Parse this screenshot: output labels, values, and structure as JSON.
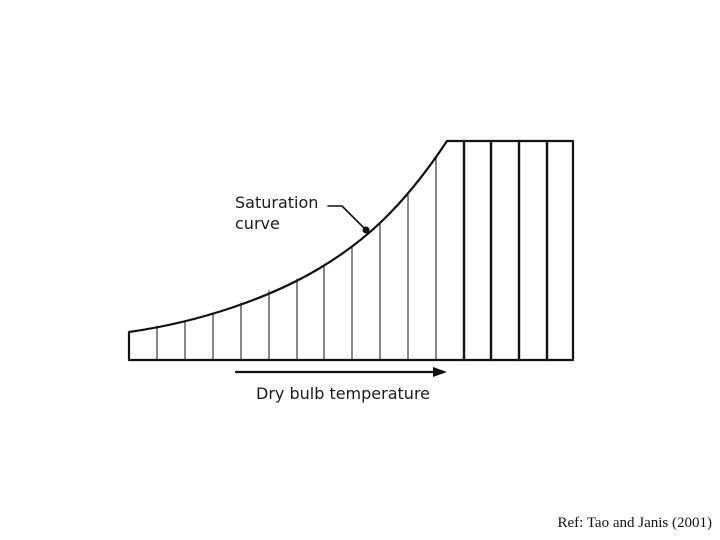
{
  "diagram": {
    "saturation_label_line1": "Saturation",
    "saturation_label_line2": "curve",
    "x_axis_label": "Dry bulb temperature"
  },
  "footer": {
    "reference": "Ref: Tao and Janis (2001)"
  }
}
